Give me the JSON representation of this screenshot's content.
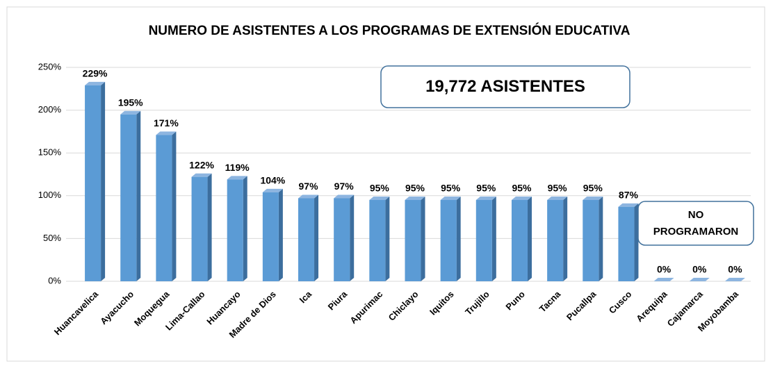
{
  "chart_data": {
    "type": "bar",
    "title": "NUMERO DE ASISTENTES A LOS PROGRAMAS DE EXTENSIÓN EDUCATIVA",
    "categories": [
      "Huancavelica",
      "Ayacucho",
      "Moquegua",
      "Lima-Callao",
      "Huancayo",
      "Madre de Dios",
      "Ica",
      "Piura",
      "Apurimac",
      "Chiclayo",
      "Iquitos",
      "Trujillo",
      "Puno",
      "Tacna",
      "Pucallpa",
      "Cusco",
      "Arequipa",
      "Cajamarca",
      "Moyobamba"
    ],
    "values": [
      229,
      195,
      171,
      122,
      119,
      104,
      97,
      97,
      95,
      95,
      95,
      95,
      95,
      95,
      95,
      87,
      0,
      0,
      0
    ],
    "value_labels": [
      "229%",
      "195%",
      "171%",
      "122%",
      "119%",
      "104%",
      "97%",
      "97%",
      "95%",
      "95%",
      "95%",
      "95%",
      "95%",
      "95%",
      "95%",
      "87%",
      "0%",
      "0%",
      "0%"
    ],
    "color": "#5b9bd5",
    "ylim": [
      0,
      250
    ],
    "yticks": [
      {
        "value": 0,
        "label": "0%"
      },
      {
        "value": 50,
        "label": "50%"
      },
      {
        "value": 100,
        "label": "100%"
      },
      {
        "value": 150,
        "label": "150%"
      },
      {
        "value": 200,
        "label": "200%"
      },
      {
        "value": 250,
        "label": "250%"
      }
    ],
    "grid": true,
    "annotations": [
      "19,772 ASISTENTES",
      "NO PROGRAMARON"
    ]
  }
}
